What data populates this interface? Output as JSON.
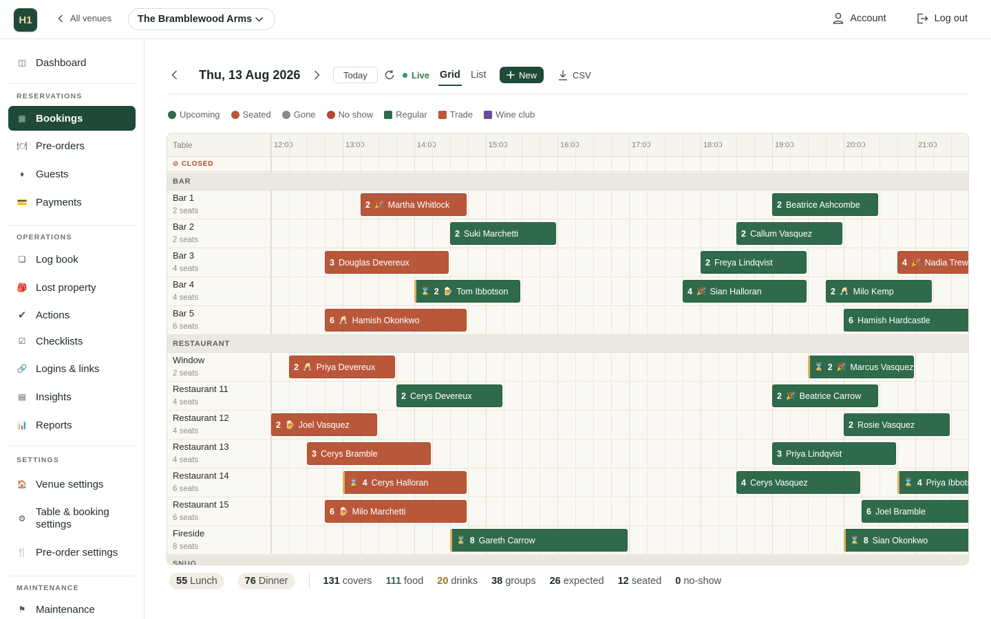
{
  "header": {
    "logo": "H1",
    "back_label": "All venues",
    "venue": "The Bramblewood Arms",
    "account": "Account",
    "logout": "Log out"
  },
  "sidebar": {
    "dashboard": "Dashboard",
    "sections": [
      {
        "label": "RESERVATIONS",
        "items": [
          "Bookings",
          "Pre-orders",
          "Guests",
          "Payments"
        ]
      },
      {
        "label": "OPERATIONS",
        "items": [
          "Log book",
          "Lost property",
          "Actions",
          "Checklists",
          "Logins & links",
          "Insights",
          "Reports"
        ]
      },
      {
        "label": "SETTINGS",
        "items": [
          "Venue settings",
          "Table & booking settings",
          "Pre-order settings"
        ]
      },
      {
        "label": "MAINTENANCE",
        "items": [
          "Maintenance"
        ]
      }
    ],
    "active": "Bookings"
  },
  "toolbar": {
    "date": "Thu, 13 Aug 2026",
    "today": "Today",
    "live": "Live",
    "tab_grid": "Grid",
    "tab_list": "List",
    "new": "New",
    "csv": "CSV"
  },
  "legend": [
    {
      "label": "Upcoming",
      "color": "#2f6b4a",
      "shape": "circle"
    },
    {
      "label": "Seated",
      "color": "#b9573a",
      "shape": "circle"
    },
    {
      "label": "Gone",
      "color": "#8a8a84",
      "shape": "circle"
    },
    {
      "label": "No show",
      "color": "#b0492f",
      "shape": "circle"
    },
    {
      "label": "Regular",
      "color": "#2f6b4a",
      "shape": "square"
    },
    {
      "label": "Trade",
      "color": "#b9573a",
      "shape": "square"
    },
    {
      "label": "Wine club",
      "color": "#6a4a9a",
      "shape": "square"
    }
  ],
  "grid": {
    "table_header": "Table",
    "closed_label": "⊘ CLOSED",
    "hours": [
      "12:00",
      "13:00",
      "14:00",
      "15:00",
      "16:00",
      "17:00",
      "18:00",
      "19:00",
      "20:00",
      "21:00"
    ],
    "sections": [
      {
        "name": "BAR",
        "tables": [
          {
            "name": "Bar 1",
            "seats": "2 seats",
            "bookings": [
              {
                "start": "13:15",
                "end": "14:45",
                "covers": "2",
                "icon": "🎉",
                "guest": "Martha Whitlock",
                "type": "trade"
              },
              {
                "start": "19:00",
                "end": "20:30",
                "covers": "2",
                "guest": "Beatrice Ashcombe",
                "type": "regular"
              }
            ]
          },
          {
            "name": "Bar 2",
            "seats": "2 seats",
            "bookings": [
              {
                "start": "14:30",
                "end": "16:00",
                "covers": "2",
                "guest": "Suki Marchetti",
                "type": "regular"
              },
              {
                "start": "18:30",
                "end": "20:00",
                "covers": "2",
                "guest": "Callum Vasquez",
                "type": "regular"
              }
            ]
          },
          {
            "name": "Bar 3",
            "seats": "4 seats",
            "bookings": [
              {
                "start": "12:45",
                "end": "14:30",
                "covers": "3",
                "guest": "Douglas Devereux",
                "type": "trade"
              },
              {
                "start": "18:00",
                "end": "19:30",
                "covers": "2",
                "guest": "Freya Lindqvist",
                "type": "regular"
              },
              {
                "start": "20:45",
                "end": "22:00",
                "covers": "4",
                "icon": "🎉",
                "guest": "Nadia Trewin",
                "type": "trade"
              }
            ]
          },
          {
            "name": "Bar 4",
            "seats": "4 seats",
            "bookings": [
              {
                "start": "14:00",
                "end": "15:30",
                "flag": "⌛",
                "covers": "2",
                "icon": "🍺",
                "guest": "Tom Ibbotson",
                "type": "regular"
              },
              {
                "start": "17:45",
                "end": "19:30",
                "covers": "4",
                "icon": "🎉",
                "guest": "Sian Halloran",
                "type": "regular"
              },
              {
                "start": "19:45",
                "end": "21:15",
                "covers": "2",
                "icon": "🥂",
                "guest": "Milo Kemp",
                "type": "regular"
              }
            ]
          },
          {
            "name": "Bar 5",
            "seats": "6 seats",
            "bookings": [
              {
                "start": "12:45",
                "end": "14:45",
                "covers": "6",
                "icon": "🥂",
                "guest": "Hamish Okonkwo",
                "type": "trade"
              },
              {
                "start": "20:00",
                "end": "22:00",
                "covers": "6",
                "guest": "Hamish Hardcastle",
                "type": "regular"
              }
            ]
          }
        ]
      },
      {
        "name": "RESTAURANT",
        "tables": [
          {
            "name": "Window",
            "seats": "2 seats",
            "bookings": [
              {
                "start": "12:15",
                "end": "13:45",
                "covers": "2",
                "icon": "🥂",
                "guest": "Priya Devereux",
                "type": "trade"
              },
              {
                "start": "19:30",
                "end": "21:00",
                "flag": "⌛",
                "covers": "2",
                "icon": "🎉",
                "guest": "Marcus Vasquez",
                "type": "regular"
              }
            ]
          },
          {
            "name": "Restaurant 11",
            "seats": "4 seats",
            "bookings": [
              {
                "start": "13:45",
                "end": "15:15",
                "covers": "2",
                "guest": "Cerys Devereux",
                "type": "regular"
              },
              {
                "start": "19:00",
                "end": "20:30",
                "covers": "2",
                "icon": "🎉",
                "guest": "Beatrice Carrow",
                "type": "regular"
              }
            ]
          },
          {
            "name": "Restaurant 12",
            "seats": "4 seats",
            "bookings": [
              {
                "start": "12:00",
                "end": "13:30",
                "covers": "2",
                "icon": "🍺",
                "guest": "Joel Vasquez",
                "type": "trade"
              },
              {
                "start": "20:00",
                "end": "21:30",
                "covers": "2",
                "guest": "Rosie Vasquez",
                "type": "regular"
              }
            ]
          },
          {
            "name": "Restaurant 13",
            "seats": "4 seats",
            "bookings": [
              {
                "start": "12:30",
                "end": "14:15",
                "covers": "3",
                "guest": "Cerys Bramble",
                "type": "trade"
              },
              {
                "start": "19:00",
                "end": "20:45",
                "covers": "3",
                "guest": "Priya Lindqvist",
                "type": "regular"
              }
            ]
          },
          {
            "name": "Restaurant 14",
            "seats": "6 seats",
            "bookings": [
              {
                "start": "13:00",
                "end": "14:45",
                "flag": "⌛",
                "covers": "4",
                "guest": "Cerys Halloran",
                "type": "trade"
              },
              {
                "start": "18:30",
                "end": "20:15",
                "covers": "4",
                "guest": "Cerys Vasquez",
                "type": "regular"
              },
              {
                "start": "20:45",
                "end": "22:00",
                "flag": "⌛",
                "covers": "4",
                "guest": "Priya Ibbotson",
                "type": "regular"
              }
            ]
          },
          {
            "name": "Restaurant 15",
            "seats": "6 seats",
            "bookings": [
              {
                "start": "12:45",
                "end": "14:45",
                "covers": "6",
                "icon": "🍺",
                "guest": "Milo Marchetti",
                "type": "trade"
              },
              {
                "start": "20:15",
                "end": "22:00",
                "covers": "6",
                "guest": "Joel Bramble",
                "type": "regular"
              }
            ]
          },
          {
            "name": "Fireside",
            "seats": "8 seats",
            "bookings": [
              {
                "start": "14:30",
                "end": "17:00",
                "flag": "⌛",
                "covers": "8",
                "guest": "Gareth Carrow",
                "type": "regular"
              },
              {
                "start": "20:00",
                "end": "22:00",
                "flag": "⌛",
                "covers": "8",
                "guest": "Sian Okonkwo",
                "type": "regular"
              }
            ]
          }
        ]
      },
      {
        "name": "SNUG",
        "tables": []
      }
    ]
  },
  "stats": {
    "lunch_value": "55",
    "lunch_label": "Lunch",
    "dinner_value": "76",
    "dinner_label": "Dinner",
    "covers_value": "131",
    "covers_label": "covers",
    "food_value": "111",
    "food_label": "food",
    "drinks_value": "20",
    "drinks_label": "drinks",
    "groups_value": "38",
    "groups_label": "groups",
    "expected_value": "26",
    "expected_label": "expected",
    "seated_value": "12",
    "seated_label": "seated",
    "noshow_value": "0",
    "noshow_label": "no-show"
  }
}
